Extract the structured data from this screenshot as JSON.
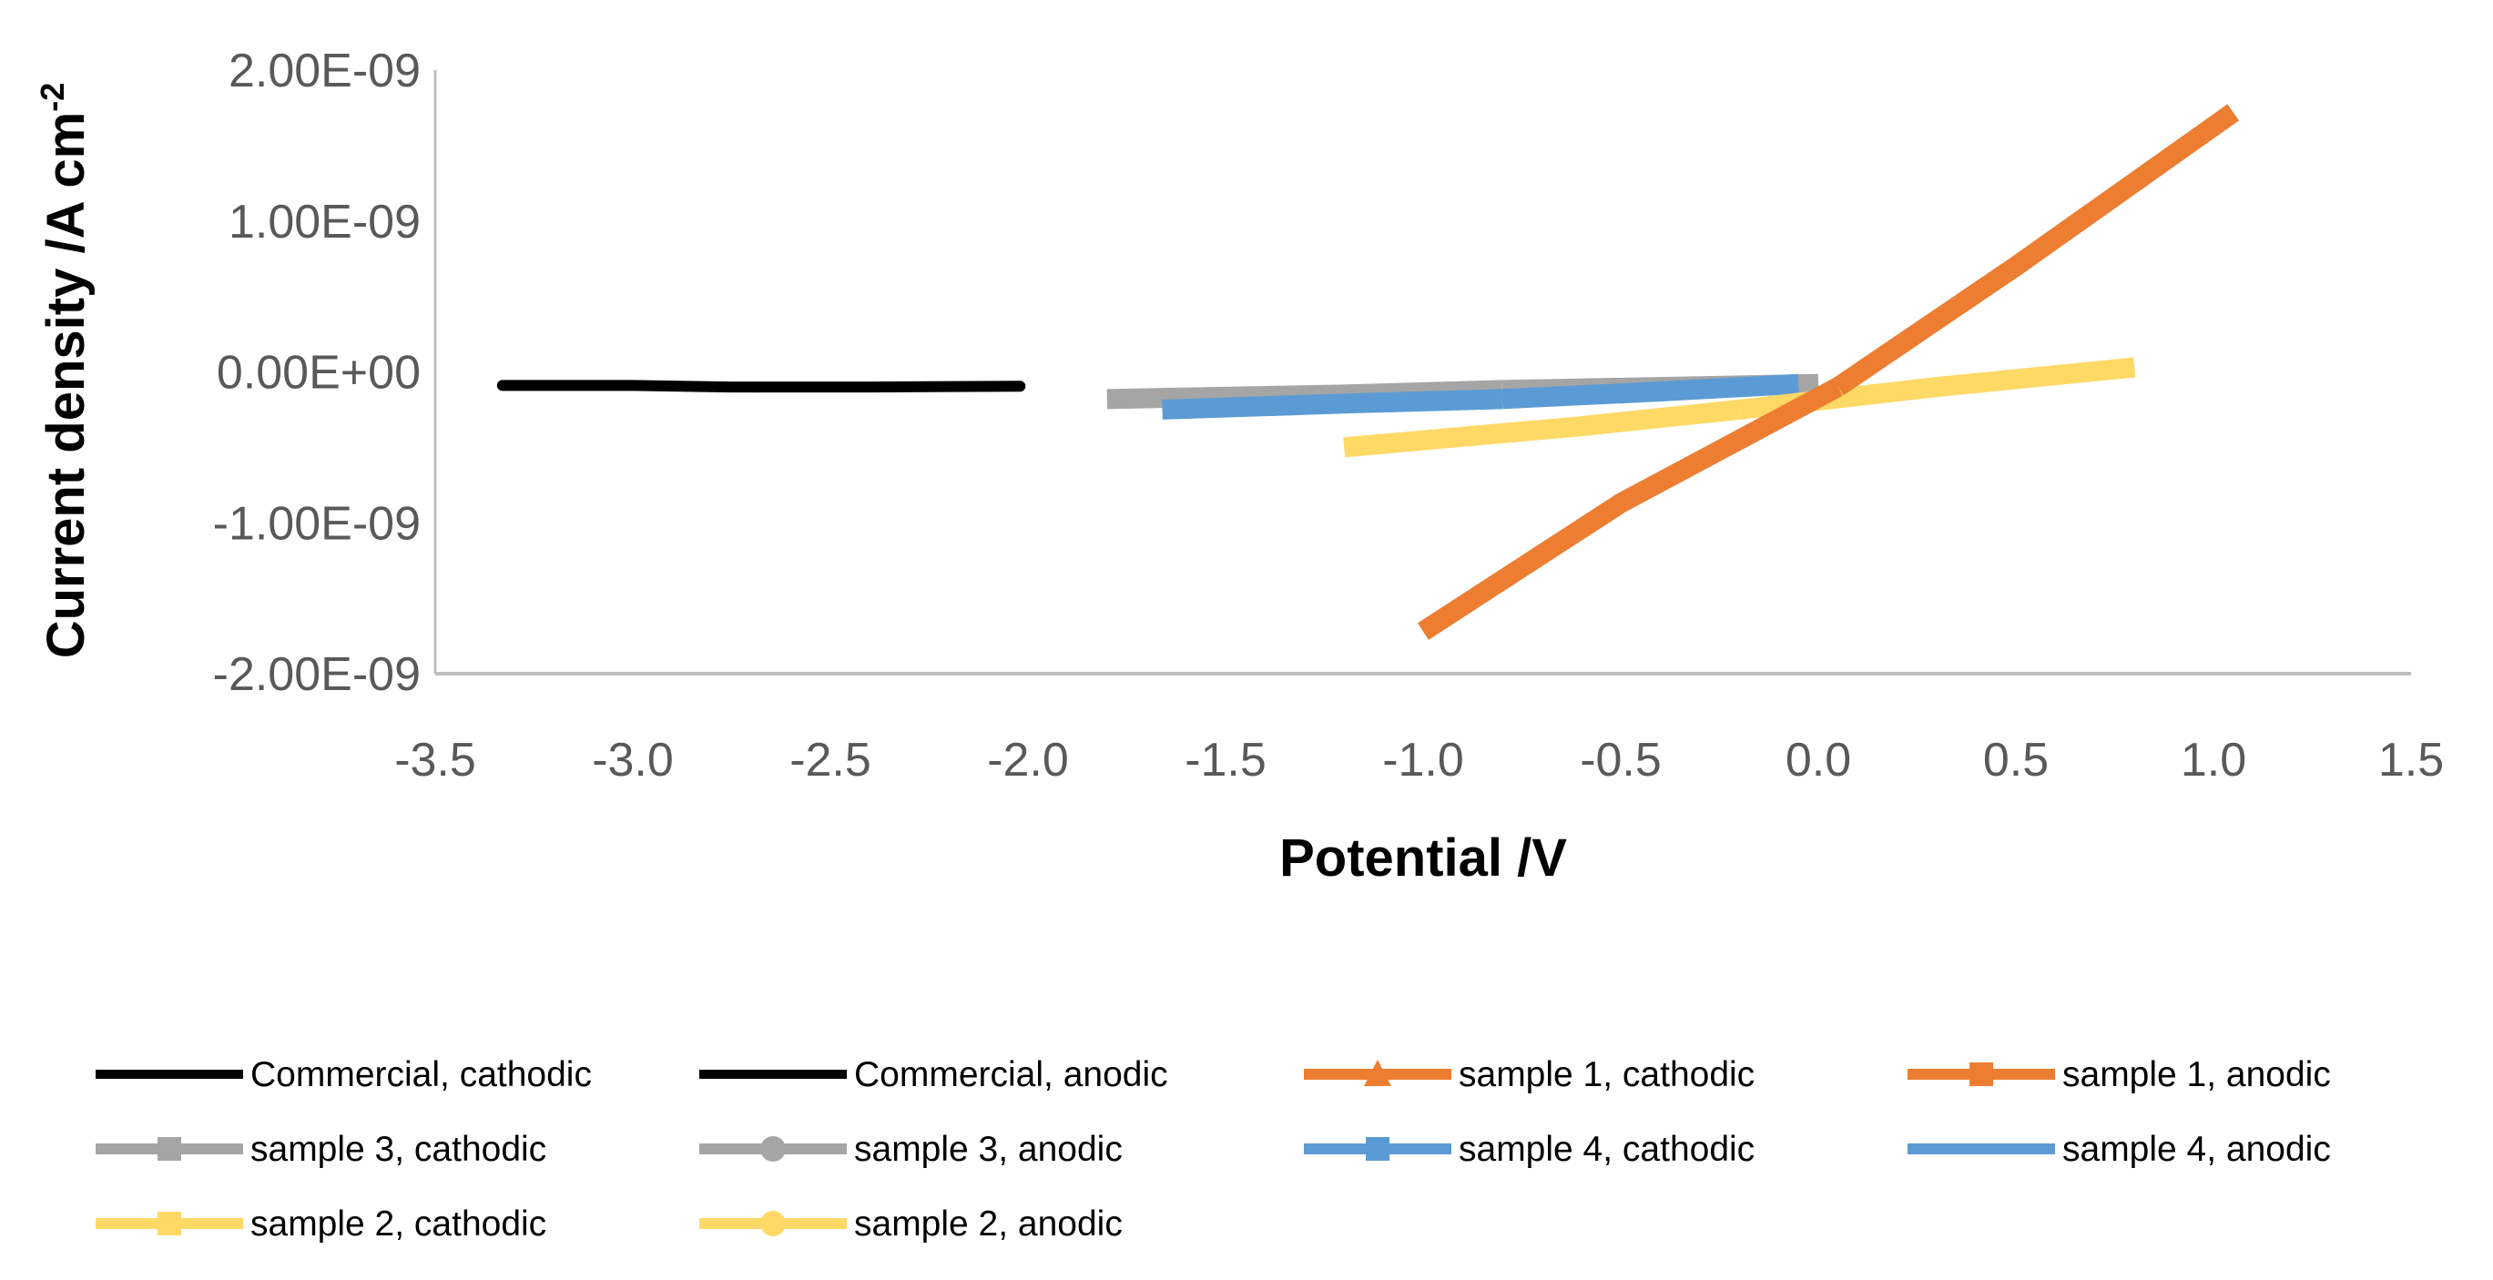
{
  "chart_data": {
    "type": "line",
    "title": "",
    "xlabel": "Potential /V",
    "ylabel": "Current density /A cm",
    "ylabel_superscript": "-2",
    "xlim": [
      -3.5,
      1.5
    ],
    "ylim": [
      -2e-09,
      2e-09
    ],
    "x_ticks": [
      "-3.5",
      "-3.0",
      "-2.5",
      "-2.0",
      "-1.5",
      "-1.0",
      "-0.5",
      "0.0",
      "0.5",
      "1.0",
      "1.5"
    ],
    "x_tick_values": [
      -3.5,
      -3.0,
      -2.5,
      -2.0,
      -1.5,
      -1.0,
      -0.5,
      0.0,
      0.5,
      1.0,
      1.5
    ],
    "y_ticks": [
      "2.00E-09",
      "1.00E-09",
      "0.00E+00",
      "-1.00E-09",
      "-2.00E-09"
    ],
    "y_tick_values": [
      2e-09,
      1e-09,
      0,
      -1e-09,
      -2e-09
    ],
    "grid": false,
    "legend_position": "bottom",
    "series": [
      {
        "name": "Commercial, cathodic",
        "color": "#000000",
        "marker": "none",
        "x": [
          -3.33,
          -3.0,
          -2.75,
          -2.68
        ],
        "y": [
          -9e-11,
          -9e-11,
          -1e-10,
          -1e-10
        ]
      },
      {
        "name": "Commercial, anodic",
        "color": "#000000",
        "marker": "none",
        "x": [
          -2.68,
          -2.4,
          -2.02
        ],
        "y": [
          -1e-10,
          -1e-10,
          -9.5e-11
        ]
      },
      {
        "name": "sample 1, cathodic",
        "color": "#ED7D31",
        "marker": "triangle",
        "x": [
          -1.0,
          -0.5,
          0.05
        ],
        "y": [
          -1.72e-09,
          -8.7e-10,
          -1e-10
        ]
      },
      {
        "name": "sample 1, anodic",
        "color": "#ED7D31",
        "marker": "square",
        "x": [
          0.05,
          0.5,
          1.05
        ],
        "y": [
          -1e-10,
          7e-10,
          1.72e-09
        ]
      },
      {
        "name": "sample 3, cathodic",
        "color": "#A5A5A5",
        "marker": "square",
        "x": [
          -1.8,
          -1.2,
          -0.8
        ],
        "y": [
          -1.8e-10,
          -1.5e-10,
          -1.2e-10
        ]
      },
      {
        "name": "sample 3, anodic",
        "color": "#A5A5A5",
        "marker": "circle",
        "x": [
          -0.8,
          -0.4,
          0.0
        ],
        "y": [
          -1.2e-10,
          -1e-10,
          -8e-11
        ]
      },
      {
        "name": "sample 4, cathodic",
        "color": "#5B9BD5",
        "marker": "square",
        "x": [
          -1.66,
          -1.2,
          -0.8
        ],
        "y": [
          -2.5e-10,
          -2.1e-10,
          -1.8e-10
        ]
      },
      {
        "name": "sample 4, anodic",
        "color": "#5B9BD5",
        "marker": "none",
        "x": [
          -0.8,
          -0.4,
          -0.05
        ],
        "y": [
          -1.8e-10,
          -1.3e-10,
          -8e-11
        ]
      },
      {
        "name": "sample 2, cathodic",
        "color": "#FFD966",
        "marker": "square",
        "x": [
          -1.2,
          -0.6,
          -0.2
        ],
        "y": [
          -5e-10,
          -3.6e-10,
          -2.5e-10
        ]
      },
      {
        "name": "sample 2, anodic",
        "color": "#FFD966",
        "marker": "circle",
        "x": [
          -0.2,
          0.3,
          0.8
        ],
        "y": [
          -2.5e-10,
          -1e-10,
          3e-11
        ]
      }
    ]
  }
}
